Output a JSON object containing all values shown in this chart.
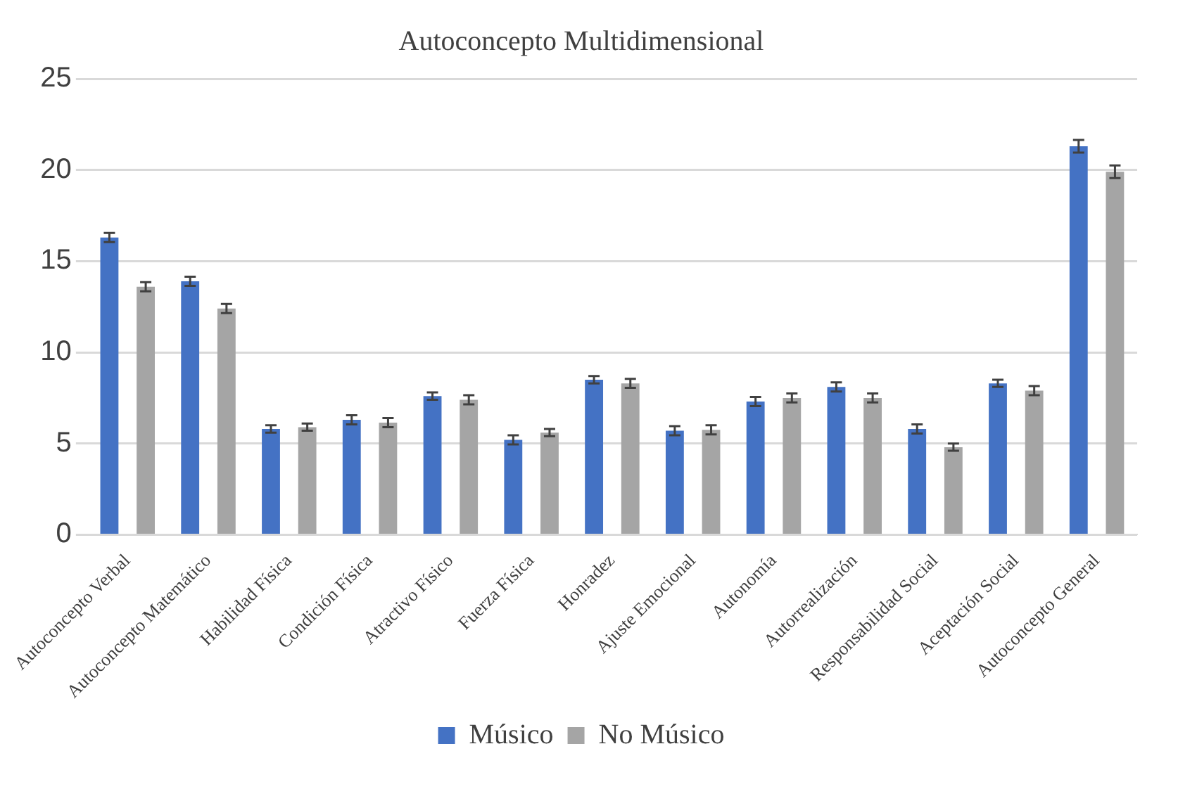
{
  "chart_data": {
    "type": "bar",
    "title": "Autoconcepto Multidimensional",
    "categories": [
      "Autoconcepto Verbal",
      "Autoconcepto Matemático",
      "Habilidad Física",
      "Condición Física",
      "Atractivo Físico",
      "Fuerza Física",
      "Honradez",
      "Ajuste Emocional",
      "Autonomía",
      "Autorrealización",
      "Responsabilidad Social",
      "Aceptación Social",
      "Autoconcepto General"
    ],
    "series": [
      {
        "name": "Músico",
        "color": "#4472c4",
        "values": [
          16.3,
          13.9,
          5.8,
          6.3,
          7.6,
          5.2,
          8.5,
          5.7,
          7.3,
          8.1,
          5.8,
          8.3,
          21.3
        ],
        "errors": [
          0.25,
          0.25,
          0.2,
          0.25,
          0.2,
          0.25,
          0.2,
          0.25,
          0.25,
          0.25,
          0.25,
          0.2,
          0.35
        ]
      },
      {
        "name": "No Músico",
        "color": "#a5a5a5",
        "values": [
          13.6,
          12.4,
          5.9,
          6.15,
          7.4,
          5.6,
          8.3,
          5.75,
          7.5,
          7.5,
          4.8,
          7.9,
          19.9
        ],
        "errors": [
          0.25,
          0.25,
          0.2,
          0.25,
          0.25,
          0.2,
          0.25,
          0.25,
          0.25,
          0.25,
          0.2,
          0.25,
          0.35
        ]
      }
    ],
    "ylim": [
      0,
      25
    ],
    "yticks": [
      0,
      5,
      10,
      15,
      20,
      25
    ],
    "grid": "y",
    "legend": "bottom"
  }
}
